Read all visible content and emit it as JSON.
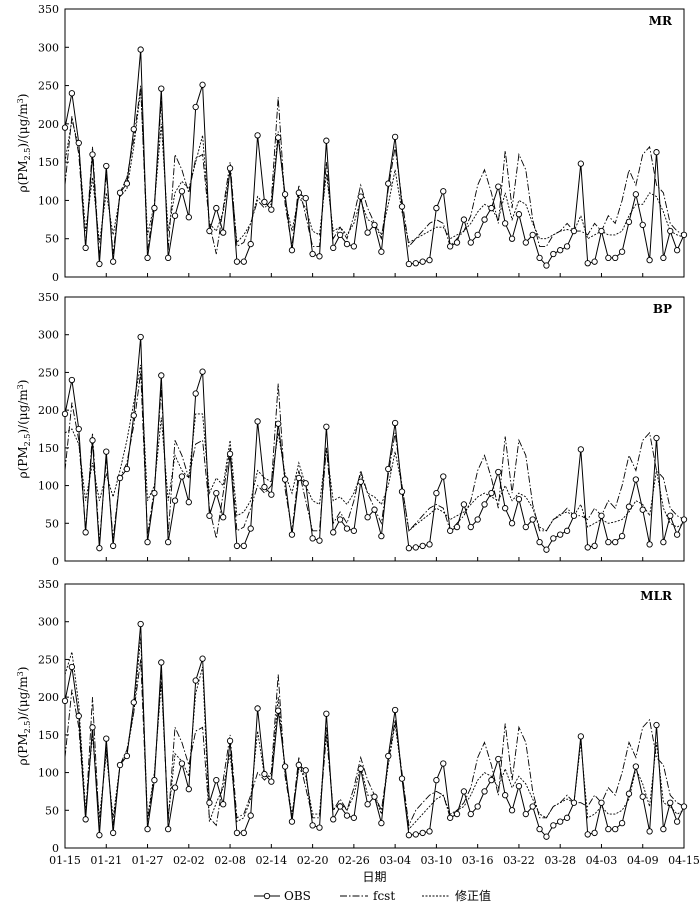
{
  "chart_data": {
    "type": "line",
    "xlabel": "日期",
    "ylabel_parts": [
      "ρ(PM",
      "2.5",
      ")/(μg/m",
      "3",
      ")"
    ],
    "ylim": [
      0,
      350
    ],
    "yticks": [
      0,
      50,
      100,
      150,
      200,
      250,
      300,
      350
    ],
    "x_tick_labels": [
      "01-15",
      "01-21",
      "01-27",
      "02-02",
      "02-08",
      "02-14",
      "02-20",
      "02-26",
      "03-04",
      "03-10",
      "03-16",
      "03-22",
      "03-28",
      "04-03",
      "04-09",
      "04-15"
    ],
    "legend": [
      "OBS",
      "fcst",
      "修正值"
    ],
    "obs": [
      195,
      240,
      175,
      38,
      160,
      17,
      145,
      20,
      110,
      122,
      193,
      297,
      25,
      90,
      246,
      25,
      80,
      112,
      78,
      222,
      251,
      60,
      90,
      58,
      142,
      20,
      20,
      43,
      185,
      98,
      88,
      182,
      108,
      35,
      110,
      103,
      30,
      27,
      178,
      38,
      55,
      43,
      40,
      105,
      58,
      68,
      33,
      122,
      183,
      92,
      17,
      18,
      20,
      22,
      90,
      112,
      40,
      45,
      75,
      45,
      55,
      75,
      90,
      118,
      70,
      50,
      82,
      45,
      55,
      25,
      15,
      30,
      35,
      40,
      60,
      148,
      18,
      20,
      60,
      25,
      25,
      33,
      72,
      108,
      68,
      22,
      163,
      25,
      60,
      35,
      55
    ],
    "panels": [
      {
        "label": "MR",
        "fcst": [
          120,
          210,
          160,
          40,
          170,
          25,
          135,
          30,
          110,
          130,
          180,
          250,
          35,
          95,
          230,
          35,
          160,
          140,
          110,
          155,
          160,
          70,
          30,
          90,
          150,
          40,
          45,
          70,
          100,
          90,
          100,
          235,
          95,
          40,
          120,
          80,
          40,
          40,
          150,
          50,
          65,
          50,
          80,
          120,
          90,
          70,
          50,
          115,
          170,
          100,
          40,
          50,
          60,
          70,
          75,
          70,
          40,
          50,
          60,
          80,
          120,
          140,
          110,
          70,
          165,
          90,
          160,
          140,
          75,
          40,
          40,
          55,
          60,
          70,
          60,
          60,
          55,
          70,
          60,
          80,
          70,
          100,
          140,
          120,
          160,
          170,
          120,
          110,
          70,
          60,
          55
        ],
        "corr": [
          150,
          205,
          170,
          60,
          130,
          45,
          110,
          55,
          105,
          115,
          170,
          245,
          55,
          95,
          200,
          60,
          110,
          125,
          115,
          150,
          185,
          70,
          60,
          85,
          140,
          45,
          55,
          70,
          105,
          95,
          95,
          190,
          100,
          60,
          105,
          90,
          60,
          55,
          135,
          60,
          65,
          55,
          70,
          100,
          75,
          70,
          55,
          95,
          140,
          85,
          45,
          50,
          55,
          60,
          65,
          65,
          50,
          55,
          60,
          70,
          85,
          95,
          90,
          75,
          110,
          75,
          100,
          95,
          70,
          50,
          50,
          55,
          60,
          62,
          60,
          80,
          50,
          55,
          60,
          55,
          55,
          60,
          80,
          95,
          95,
          110,
          105,
          85,
          60,
          55,
          52
        ]
      },
      {
        "label": "BP",
        "fcst": [
          120,
          210,
          160,
          40,
          170,
          25,
          135,
          30,
          110,
          130,
          180,
          250,
          35,
          95,
          230,
          35,
          160,
          140,
          110,
          155,
          160,
          70,
          30,
          90,
          150,
          40,
          45,
          70,
          100,
          90,
          100,
          235,
          95,
          40,
          120,
          80,
          40,
          40,
          150,
          50,
          65,
          50,
          80,
          120,
          90,
          70,
          50,
          115,
          170,
          100,
          40,
          50,
          60,
          70,
          75,
          70,
          40,
          50,
          60,
          80,
          120,
          140,
          110,
          70,
          165,
          90,
          160,
          140,
          75,
          40,
          40,
          55,
          60,
          70,
          60,
          60,
          55,
          70,
          60,
          80,
          70,
          100,
          140,
          120,
          160,
          170,
          120,
          110,
          70,
          60,
          55
        ],
        "corr": [
          170,
          175,
          155,
          80,
          130,
          80,
          115,
          85,
          120,
          160,
          210,
          260,
          80,
          100,
          190,
          80,
          140,
          120,
          110,
          195,
          195,
          90,
          110,
          100,
          160,
          60,
          65,
          80,
          120,
          110,
          105,
          170,
          115,
          90,
          130,
          100,
          80,
          75,
          150,
          80,
          85,
          75,
          90,
          115,
          90,
          85,
          75,
          100,
          145,
          100,
          40,
          48,
          55,
          62,
          70,
          65,
          55,
          60,
          65,
          75,
          85,
          90,
          85,
          80,
          100,
          80,
          90,
          85,
          70,
          45,
          40,
          55,
          62,
          65,
          60,
          75,
          45,
          50,
          55,
          50,
          52,
          55,
          65,
          80,
          75,
          60,
          120,
          70,
          50,
          45,
          50
        ]
      },
      {
        "label": "MLR",
        "fcst": [
          120,
          210,
          160,
          40,
          200,
          25,
          135,
          30,
          110,
          130,
          180,
          250,
          35,
          95,
          230,
          35,
          160,
          140,
          110,
          155,
          160,
          40,
          30,
          90,
          150,
          40,
          45,
          70,
          100,
          90,
          100,
          230,
          95,
          40,
          120,
          80,
          40,
          40,
          150,
          50,
          65,
          50,
          80,
          120,
          90,
          70,
          50,
          115,
          170,
          100,
          30,
          50,
          60,
          70,
          75,
          70,
          40,
          50,
          60,
          80,
          120,
          140,
          110,
          70,
          165,
          90,
          160,
          140,
          75,
          40,
          40,
          55,
          60,
          70,
          60,
          60,
          55,
          70,
          60,
          80,
          70,
          100,
          140,
          120,
          160,
          170,
          120,
          110,
          70,
          60,
          55
        ],
        "corr": [
          230,
          260,
          190,
          50,
          150,
          40,
          125,
          40,
          110,
          125,
          180,
          280,
          40,
          100,
          220,
          40,
          125,
          115,
          95,
          205,
          240,
          35,
          60,
          80,
          125,
          35,
          40,
          65,
          155,
          95,
          95,
          200,
          100,
          45,
          105,
          95,
          45,
          45,
          160,
          50,
          60,
          50,
          70,
          110,
          70,
          70,
          45,
          110,
          165,
          95,
          25,
          35,
          45,
          55,
          65,
          70,
          45,
          50,
          55,
          70,
          90,
          100,
          95,
          80,
          105,
          80,
          95,
          85,
          65,
          45,
          40,
          55,
          60,
          65,
          60,
          140,
          40,
          45,
          55,
          45,
          45,
          50,
          65,
          105,
          85,
          55,
          140,
          60,
          55,
          45,
          50
        ]
      }
    ]
  }
}
